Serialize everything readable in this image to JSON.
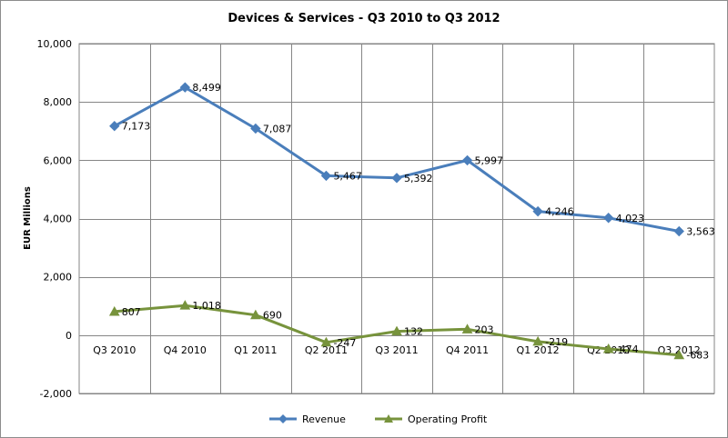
{
  "chart_data": {
    "type": "line",
    "title": "Devices & Services - Q3 2010 to Q3 2012",
    "xlabel": "",
    "ylabel": "EUR Millions",
    "ylim": [
      -2000,
      10000
    ],
    "y_ticks": [
      "10,000",
      "8,000",
      "6,000",
      "4,000",
      "2,000",
      "0",
      "-2,000"
    ],
    "y_tick_values": [
      10000,
      8000,
      6000,
      4000,
      2000,
      0,
      -2000
    ],
    "categories": [
      "Q3 2010",
      "Q4 2010",
      "Q1 2011",
      "Q2 2011",
      "Q3 2011",
      "Q4 2011",
      "Q1 2012",
      "Q2 2012",
      "Q3 2012"
    ],
    "grid": "vertical and horizontal",
    "legend_position": "bottom",
    "series": [
      {
        "name": "Revenue",
        "color": "#4a7ebb",
        "marker": "diamond",
        "values": [
          7173,
          8499,
          7087,
          5467,
          5392,
          5997,
          4246,
          4023,
          3563
        ],
        "labels": [
          "7,173",
          "8,499",
          "7,087",
          "5,467",
          "5,392",
          "5,997",
          "4,246",
          "4,023",
          "3,563"
        ]
      },
      {
        "name": "Operating Profit",
        "color": "#77933c",
        "marker": "triangle",
        "values": [
          807,
          1018,
          690,
          -247,
          132,
          203,
          -219,
          -474,
          -683
        ],
        "labels": [
          "807",
          "1,018",
          "690",
          "-247",
          "132",
          "203",
          "-219",
          "-474",
          "-683"
        ]
      }
    ]
  }
}
